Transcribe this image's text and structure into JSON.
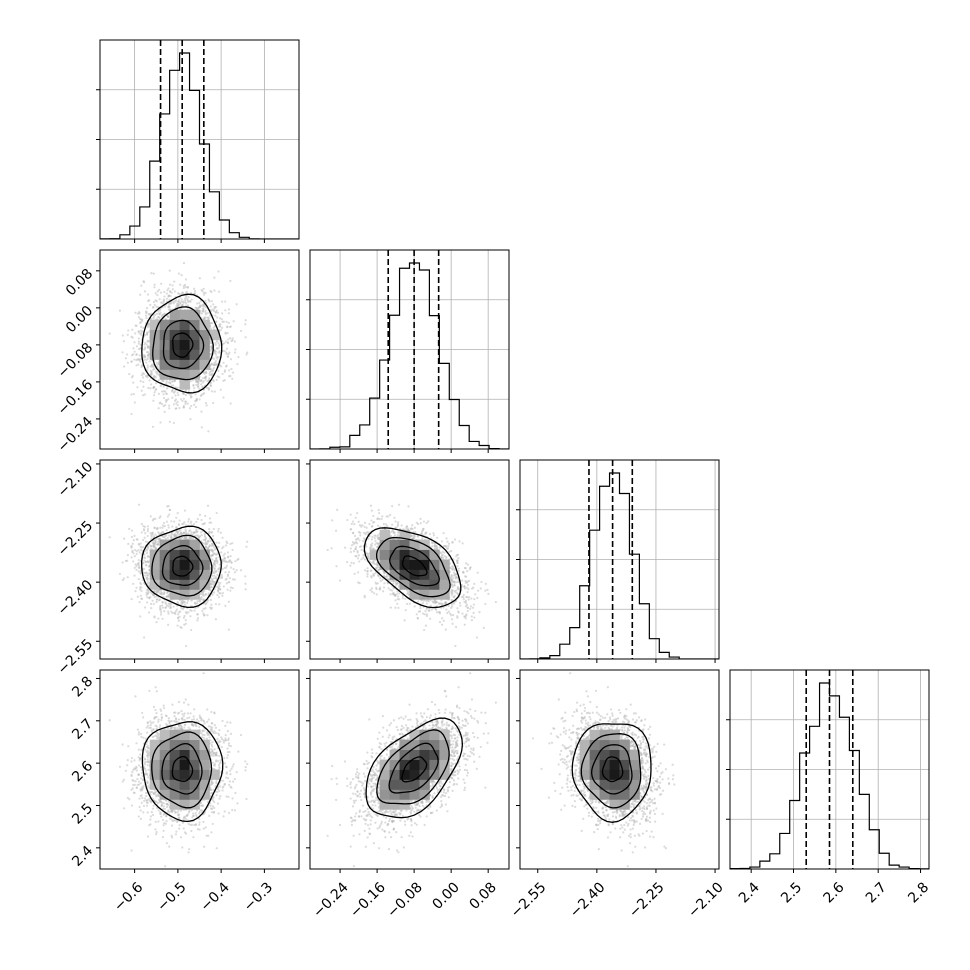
{
  "chart_data": {
    "type": "corner",
    "description_free": true,
    "params": [
      {
        "index": 0,
        "center": -0.49,
        "sigma": 0.046,
        "q": [
          -0.54,
          -0.49,
          -0.44
        ],
        "range": [
          -0.68,
          -0.22
        ],
        "ticks": [
          -0.6,
          -0.5,
          -0.4,
          -0.3
        ],
        "tick_labels": [
          "−0.6",
          "−0.5",
          "−0.4",
          "−0.3"
        ]
      },
      {
        "index": 1,
        "center": -0.08,
        "sigma": 0.052,
        "q": [
          -0.136,
          -0.08,
          -0.027
        ],
        "range": [
          -0.305,
          0.125
        ],
        "ticks": [
          -0.24,
          -0.16,
          -0.08,
          0.0,
          0.08
        ],
        "tick_labels": [
          "−0.24",
          "−0.16",
          "−0.08",
          "0.00",
          "0.08"
        ]
      },
      {
        "index": 2,
        "center": -2.36,
        "sigma": 0.05,
        "q": [
          -2.42,
          -2.36,
          -2.31
        ],
        "range": [
          -2.595,
          -2.09
        ],
        "ticks": [
          -2.55,
          -2.4,
          -2.25,
          -2.1
        ],
        "tick_labels": [
          "−2.55",
          "−2.40",
          "−2.25",
          "−2.10"
        ]
      },
      {
        "index": 3,
        "center": 2.585,
        "sigma": 0.058,
        "q": [
          2.53,
          2.585,
          2.64
        ],
        "range": [
          2.35,
          2.82
        ],
        "ticks": [
          2.4,
          2.5,
          2.6,
          2.7,
          2.8
        ],
        "tick_labels": [
          "2.4",
          "2.5",
          "2.6",
          "2.7",
          "2.8"
        ]
      }
    ],
    "correlations": {
      "1_0": 0.0,
      "2_0": 0.0,
      "2_1": -0.5,
      "3_0": 0.0,
      "3_1": 0.5,
      "3_2": 0.0
    },
    "histogram_bins": 20,
    "quantile_style": "dashed",
    "grid": true,
    "contours": true,
    "scatter_points": true
  }
}
